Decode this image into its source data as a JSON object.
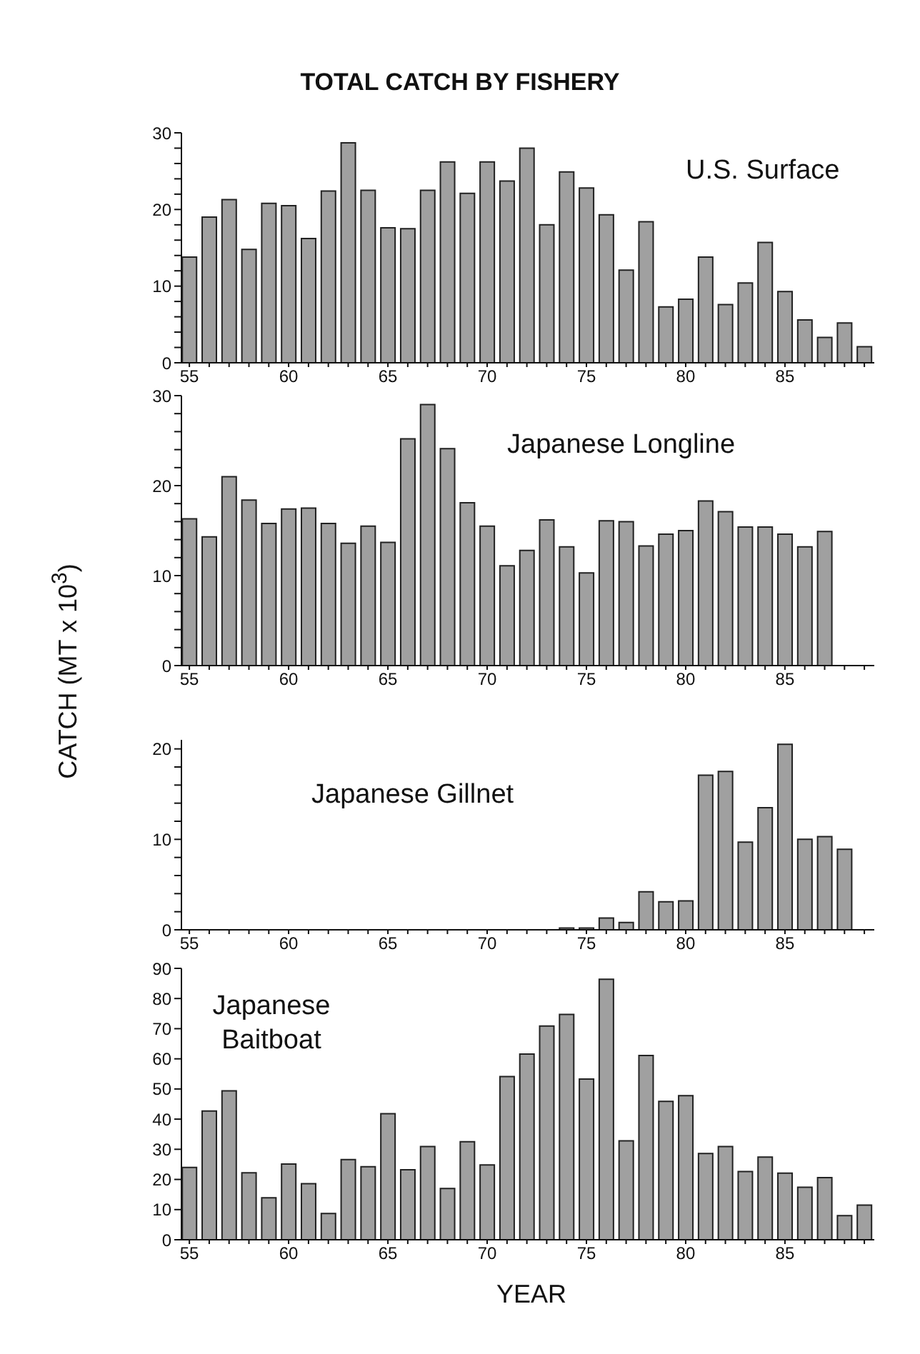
{
  "chart_data": [
    {
      "type": "bar",
      "title": "TOTAL CATCH BY FISHERY",
      "annotations": [
        "U.S. Surface"
      ],
      "color": "#a0a0a0",
      "x": [
        55,
        56,
        57,
        58,
        59,
        60,
        61,
        62,
        63,
        64,
        65,
        66,
        67,
        68,
        69,
        70,
        71,
        72,
        73,
        74,
        75,
        76,
        77,
        78,
        79,
        80,
        81,
        82,
        83,
        84,
        85,
        86,
        87,
        88,
        89
      ],
      "values": [
        13.8,
        19.0,
        21.3,
        14.8,
        20.8,
        20.5,
        16.2,
        22.4,
        28.7,
        22.5,
        17.6,
        17.5,
        22.5,
        26.2,
        22.1,
        26.2,
        23.7,
        28.0,
        18.0,
        24.9,
        22.8,
        19.3,
        12.1,
        18.4,
        7.3,
        8.3,
        13.8,
        7.6,
        10.4,
        15.7,
        9.3,
        5.6,
        3.3,
        5.2,
        2.1
      ],
      "xlim": [
        54.6,
        89.5
      ],
      "xticks": [
        55,
        {
          "value": 56,
          "label": null
        },
        {
          "value": 57,
          "label": null
        },
        {
          "value": 58,
          "label": null
        },
        {
          "value": 59,
          "label": null
        },
        60,
        {
          "value": 61,
          "label": null
        },
        {
          "value": 62,
          "label": null
        },
        {
          "value": 63,
          "label": null
        },
        {
          "value": 64,
          "label": null
        },
        65,
        {
          "value": 66,
          "label": null
        },
        {
          "value": 67,
          "label": null
        },
        {
          "value": 68,
          "label": null
        },
        {
          "value": 69,
          "label": null
        },
        70,
        {
          "value": 71,
          "label": null
        },
        {
          "value": 72,
          "label": null
        },
        {
          "value": 73,
          "label": null
        },
        {
          "value": 74,
          "label": null
        },
        75,
        {
          "value": 76,
          "label": null
        },
        {
          "value": 77,
          "label": null
        },
        {
          "value": 78,
          "label": null
        },
        {
          "value": 79,
          "label": null
        },
        80,
        {
          "value": 81,
          "label": null
        },
        {
          "value": 82,
          "label": null
        },
        {
          "value": 83,
          "label": null
        },
        {
          "value": 84,
          "label": null
        },
        85,
        {
          "value": 86,
          "label": null
        },
        {
          "value": 87,
          "label": null
        },
        {
          "value": 88,
          "label": null
        },
        {
          "value": 89,
          "label": null
        }
      ],
      "ylim": [
        0,
        30
      ],
      "yticks": [
        0,
        {
          "value": 2,
          "label": null
        },
        {
          "value": 4,
          "label": null
        },
        {
          "value": 6,
          "label": null
        },
        {
          "value": 8,
          "label": null
        },
        10,
        {
          "value": 12,
          "label": null
        },
        {
          "value": 14,
          "label": null
        },
        {
          "value": 16,
          "label": null
        },
        {
          "value": 18,
          "label": null
        },
        20,
        {
          "value": 22,
          "label": null
        },
        {
          "value": 24,
          "label": null
        },
        {
          "value": 26,
          "label": null
        },
        {
          "value": 28,
          "label": null
        },
        30
      ],
      "grid": false,
      "legend": false
    },
    {
      "type": "bar",
      "ylabel": "CATCH (MT x 10$^{3}$)",
      "annotations": [
        "Japanese Longline"
      ],
      "color": "#a0a0a0",
      "x": [
        55,
        56,
        57,
        58,
        59,
        60,
        61,
        62,
        63,
        64,
        65,
        66,
        67,
        68,
        69,
        70,
        71,
        72,
        73,
        74,
        75,
        76,
        77,
        78,
        79,
        80,
        81,
        82,
        83,
        84,
        85,
        86,
        87
      ],
      "values": [
        16.3,
        14.3,
        21.0,
        18.4,
        15.8,
        17.4,
        17.5,
        15.8,
        13.6,
        15.5,
        13.7,
        25.2,
        29.0,
        24.1,
        18.1,
        15.5,
        11.1,
        12.8,
        16.2,
        13.2,
        10.3,
        16.1,
        16.0,
        13.3,
        14.6,
        15.0,
        18.3,
        17.1,
        15.4,
        15.4,
        14.6,
        13.2,
        14.9
      ],
      "xlim": [
        54.6,
        89.5
      ],
      "xticks": [
        55,
        {
          "value": 56,
          "label": null
        },
        {
          "value": 57,
          "label": null
        },
        {
          "value": 58,
          "label": null
        },
        {
          "value": 59,
          "label": null
        },
        60,
        {
          "value": 61,
          "label": null
        },
        {
          "value": 62,
          "label": null
        },
        {
          "value": 63,
          "label": null
        },
        {
          "value": 64,
          "label": null
        },
        65,
        {
          "value": 66,
          "label": null
        },
        {
          "value": 67,
          "label": null
        },
        {
          "value": 68,
          "label": null
        },
        {
          "value": 69,
          "label": null
        },
        70,
        {
          "value": 71,
          "label": null
        },
        {
          "value": 72,
          "label": null
        },
        {
          "value": 73,
          "label": null
        },
        {
          "value": 74,
          "label": null
        },
        75,
        {
          "value": 76,
          "label": null
        },
        {
          "value": 77,
          "label": null
        },
        {
          "value": 78,
          "label": null
        },
        {
          "value": 79,
          "label": null
        },
        80,
        {
          "value": 81,
          "label": null
        },
        {
          "value": 82,
          "label": null
        },
        {
          "value": 83,
          "label": null
        },
        {
          "value": 84,
          "label": null
        },
        85,
        {
          "value": 86,
          "label": null
        },
        {
          "value": 87,
          "label": null
        },
        {
          "value": 88,
          "label": null
        },
        {
          "value": 89,
          "label": null
        }
      ],
      "ylim": [
        0,
        30
      ],
      "yticks": [
        0,
        {
          "value": 2,
          "label": null
        },
        {
          "value": 4,
          "label": null
        },
        {
          "value": 6,
          "label": null
        },
        {
          "value": 8,
          "label": null
        },
        10,
        {
          "value": 12,
          "label": null
        },
        {
          "value": 14,
          "label": null
        },
        {
          "value": 16,
          "label": null
        },
        {
          "value": 18,
          "label": null
        },
        20,
        {
          "value": 22,
          "label": null
        },
        {
          "value": 24,
          "label": null
        },
        {
          "value": 26,
          "label": null
        },
        {
          "value": 28,
          "label": null
        },
        30
      ],
      "grid": false,
      "legend": false
    },
    {
      "type": "bar",
      "annotations": [
        "Japanese Gillnet"
      ],
      "color": "#a0a0a0",
      "x": [
        55,
        56,
        57,
        58,
        59,
        60,
        61,
        62,
        63,
        64,
        65,
        66,
        67,
        68,
        69,
        70,
        71,
        72,
        73,
        74,
        75,
        76,
        77,
        78,
        79,
        80,
        81,
        82,
        83,
        84,
        85,
        86,
        87,
        88
      ],
      "values": [
        0,
        0,
        0,
        0,
        0,
        0,
        0,
        0,
        0,
        0,
        0,
        0,
        0,
        0,
        0,
        0,
        0,
        0,
        0,
        0.2,
        0.2,
        1.3,
        0.8,
        4.2,
        3.1,
        3.2,
        17.1,
        17.5,
        9.7,
        13.5,
        20.5,
        10.0,
        10.3,
        8.9
      ],
      "xlim": [
        54.6,
        89.5
      ],
      "xticks": [
        55,
        {
          "value": 56,
          "label": null
        },
        {
          "value": 57,
          "label": null
        },
        {
          "value": 58,
          "label": null
        },
        {
          "value": 59,
          "label": null
        },
        60,
        {
          "value": 61,
          "label": null
        },
        {
          "value": 62,
          "label": null
        },
        {
          "value": 63,
          "label": null
        },
        {
          "value": 64,
          "label": null
        },
        65,
        {
          "value": 66,
          "label": null
        },
        {
          "value": 67,
          "label": null
        },
        {
          "value": 68,
          "label": null
        },
        {
          "value": 69,
          "label": null
        },
        70,
        {
          "value": 71,
          "label": null
        },
        {
          "value": 72,
          "label": null
        },
        {
          "value": 73,
          "label": null
        },
        {
          "value": 74,
          "label": null
        },
        75,
        {
          "value": 76,
          "label": null
        },
        {
          "value": 77,
          "label": null
        },
        {
          "value": 78,
          "label": null
        },
        {
          "value": 79,
          "label": null
        },
        80,
        {
          "value": 81,
          "label": null
        },
        {
          "value": 82,
          "label": null
        },
        {
          "value": 83,
          "label": null
        },
        {
          "value": 84,
          "label": null
        },
        85,
        {
          "value": 86,
          "label": null
        },
        {
          "value": 87,
          "label": null
        },
        {
          "value": 88,
          "label": null
        },
        {
          "value": 89,
          "label": null
        }
      ],
      "ylim": [
        0,
        21
      ],
      "yticks": [
        0,
        {
          "value": 2,
          "label": null
        },
        {
          "value": 4,
          "label": null
        },
        {
          "value": 6,
          "label": null
        },
        {
          "value": 8,
          "label": null
        },
        10,
        {
          "value": 12,
          "label": null
        },
        {
          "value": 14,
          "label": null
        },
        {
          "value": 16,
          "label": null
        },
        {
          "value": 18,
          "label": null
        },
        20
      ],
      "grid": false,
      "legend": false
    },
    {
      "type": "bar",
      "xlabel": "YEAR",
      "annotations": [
        "Japanese\nBaitboat"
      ],
      "color": "#a0a0a0",
      "x": [
        55,
        56,
        57,
        58,
        59,
        60,
        61,
        62,
        63,
        64,
        65,
        66,
        67,
        68,
        69,
        70,
        71,
        72,
        73,
        74,
        75,
        76,
        77,
        78,
        79,
        80,
        81,
        82,
        83,
        84,
        85,
        86,
        87,
        88,
        89
      ],
      "values": [
        24.0,
        42.7,
        49.4,
        22.2,
        13.9,
        25.1,
        18.6,
        8.7,
        26.6,
        24.2,
        41.8,
        23.2,
        30.9,
        17.0,
        32.5,
        24.8,
        54.1,
        61.6,
        70.9,
        74.7,
        53.3,
        86.4,
        32.8,
        61.1,
        45.9,
        47.8,
        28.6,
        30.9,
        22.6,
        27.4,
        22.1,
        17.4,
        20.6,
        8.0,
        11.5
      ],
      "xlim": [
        54.6,
        89.5
      ],
      "xticks": [
        55,
        {
          "value": 56,
          "label": null
        },
        {
          "value": 57,
          "label": null
        },
        {
          "value": 58,
          "label": null
        },
        {
          "value": 59,
          "label": null
        },
        60,
        {
          "value": 61,
          "label": null
        },
        {
          "value": 62,
          "label": null
        },
        {
          "value": 63,
          "label": null
        },
        {
          "value": 64,
          "label": null
        },
        65,
        {
          "value": 66,
          "label": null
        },
        {
          "value": 67,
          "label": null
        },
        {
          "value": 68,
          "label": null
        },
        {
          "value": 69,
          "label": null
        },
        70,
        {
          "value": 71,
          "label": null
        },
        {
          "value": 72,
          "label": null
        },
        {
          "value": 73,
          "label": null
        },
        {
          "value": 74,
          "label": null
        },
        75,
        {
          "value": 76,
          "label": null
        },
        {
          "value": 77,
          "label": null
        },
        {
          "value": 78,
          "label": null
        },
        {
          "value": 79,
          "label": null
        },
        80,
        {
          "value": 81,
          "label": null
        },
        {
          "value": 82,
          "label": null
        },
        {
          "value": 83,
          "label": null
        },
        {
          "value": 84,
          "label": null
        },
        85,
        {
          "value": 86,
          "label": null
        },
        {
          "value": 87,
          "label": null
        },
        {
          "value": 88,
          "label": null
        },
        {
          "value": 89,
          "label": null
        }
      ],
      "ylim": [
        0,
        90
      ],
      "yticks": [
        0,
        10,
        20,
        30,
        40,
        50,
        60,
        70,
        80,
        90
      ],
      "grid": false,
      "legend": false
    }
  ]
}
